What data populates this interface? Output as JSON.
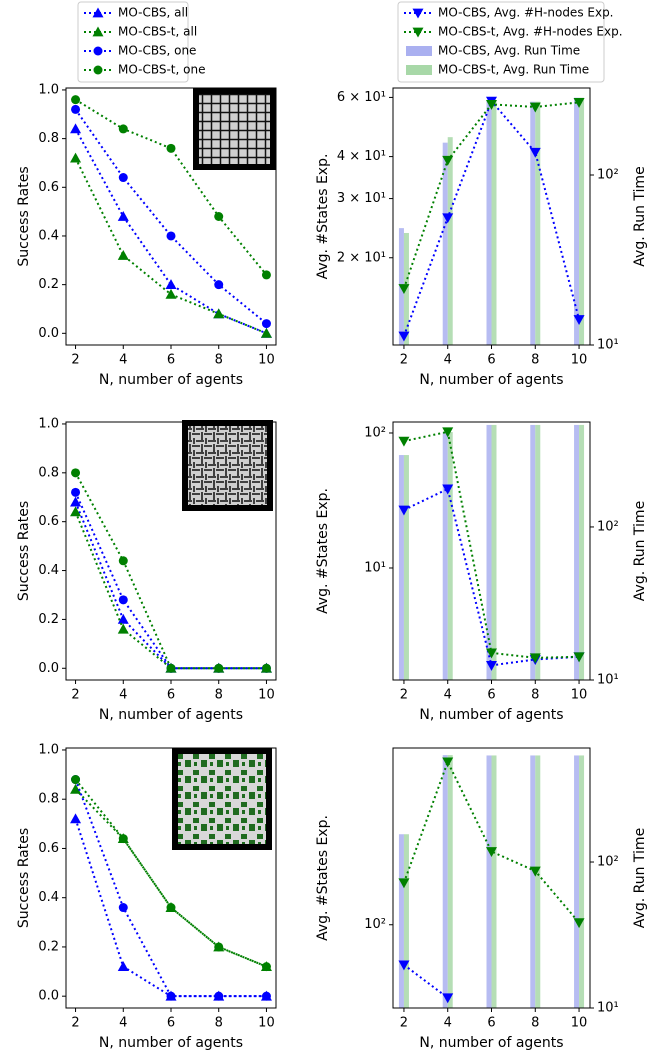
{
  "chart_data": [
    {
      "type": "line",
      "x": [
        2,
        4,
        6,
        8,
        10
      ],
      "xlim": [
        1.6,
        10.4
      ],
      "xticks": [
        2,
        4,
        6,
        8,
        10
      ],
      "ylim": [
        -0.048,
        1.008
      ],
      "yticks": [
        {
          "value": 0,
          "label": "0.0"
        },
        {
          "value": 0.2,
          "label": "0.2"
        },
        {
          "value": 0.4,
          "label": "0.4"
        },
        {
          "value": 0.6,
          "label": "0.6"
        },
        {
          "value": 0.8,
          "label": "0.8"
        },
        {
          "value": 1,
          "label": "1.0"
        }
      ],
      "xlabel": "N, number of agents",
      "ylabel": "Success Rates",
      "series": [
        {
          "name": "MO-CBS, all",
          "color": "#0000ff",
          "marker": "^",
          "values": [
            0.84,
            0.48,
            0.2,
            0.08,
            0.0
          ]
        },
        {
          "name": "MO-CBS-t, all",
          "color": "#008000",
          "marker": "^",
          "values": [
            0.72,
            0.32,
            0.16,
            0.08,
            0.0
          ]
        },
        {
          "name": "MO-CBS, one",
          "color": "#0000ff",
          "marker": "o",
          "values": [
            0.92,
            0.64,
            0.4,
            0.2,
            0.04
          ]
        },
        {
          "name": "MO-CBS-t, one",
          "color": "#008000",
          "marker": "o",
          "values": [
            0.96,
            0.84,
            0.76,
            0.48,
            0.24
          ]
        }
      ]
    },
    {
      "type": "combo",
      "x": [
        2,
        4,
        6,
        8,
        10
      ],
      "xlim": [
        1.5,
        10.5
      ],
      "xticks": [
        2,
        4,
        6,
        8,
        10
      ],
      "yscale": "log",
      "ylim": [
        11,
        64
      ],
      "yticks": [
        {
          "value": 20,
          "label": "2 × 10¹"
        },
        {
          "value": 30,
          "label": "3 × 10¹"
        },
        {
          "value": 40,
          "label": "4 × 10¹"
        },
        {
          "value": 60,
          "label": "6 × 10¹"
        }
      ],
      "y2scale": "log",
      "y2lim": [
        10,
        325
      ],
      "y2ticks": [
        {
          "value": 10,
          "label": "10¹"
        },
        {
          "value": 100,
          "label": "10²"
        }
      ],
      "xlabel": "N, number of agents",
      "ylabel": "Avg. #States Exp.",
      "y2label": "Avg. Run Time",
      "series": [
        {
          "name": "MO-CBS, Avg. #H-nodes Exp.",
          "type": "line",
          "color": "#0000ff",
          "marker": "v",
          "values": [
            11.7,
            26.3,
            58.5,
            41.2,
            13.1
          ]
        },
        {
          "name": "MO-CBS-t, Avg. #H-nodes Exp.",
          "type": "line",
          "color": "#008000",
          "marker": "v",
          "values": [
            16.2,
            39,
            57.2,
            56.2,
            58
          ]
        },
        {
          "name": "MO-CBS, Avg. Run Time",
          "type": "bar",
          "axis": "y2",
          "color": "#aab0f0",
          "values": [
            48.7,
            155,
            275,
            270,
            285
          ]
        },
        {
          "name": "MO-CBS-t, Avg. Run Time",
          "type": "bar",
          "axis": "y2",
          "color": "#a8d8a8",
          "values": [
            45.6,
            167,
            275,
            270,
            285
          ]
        }
      ]
    },
    {
      "type": "line",
      "x": [
        2,
        4,
        6,
        8,
        10
      ],
      "xlim": [
        1.6,
        10.4
      ],
      "xticks": [
        2,
        4,
        6,
        8,
        10
      ],
      "ylim": [
        -0.048,
        1.008
      ],
      "yticks": [
        {
          "value": 0,
          "label": "0.0"
        },
        {
          "value": 0.2,
          "label": "0.2"
        },
        {
          "value": 0.4,
          "label": "0.4"
        },
        {
          "value": 0.6,
          "label": "0.6"
        },
        {
          "value": 0.8,
          "label": "0.8"
        },
        {
          "value": 1,
          "label": "1.0"
        }
      ],
      "xlabel": "N, number of agents",
      "ylabel": "Success Rates",
      "series": [
        {
          "color": "#0000ff",
          "marker": "^",
          "values": [
            0.68,
            0.2,
            0.0,
            0.0,
            0.0
          ]
        },
        {
          "color": "#008000",
          "marker": "^",
          "values": [
            0.64,
            0.16,
            0.0,
            0.0,
            0.0
          ]
        },
        {
          "color": "#0000ff",
          "marker": "o",
          "values": [
            0.72,
            0.28,
            0.0,
            0.0,
            0.0
          ]
        },
        {
          "color": "#008000",
          "marker": "o",
          "values": [
            0.8,
            0.44,
            0.0,
            0.0,
            0.0
          ]
        }
      ]
    },
    {
      "type": "combo",
      "x": [
        2,
        4,
        6,
        8,
        10
      ],
      "xlim": [
        1.5,
        10.5
      ],
      "xticks": [
        2,
        4,
        6,
        8,
        10
      ],
      "yscale": "log",
      "ylim": [
        1.48,
        120.6
      ],
      "yticks": [
        {
          "value": 10,
          "label": "10¹"
        },
        {
          "value": 100,
          "label": "10²"
        }
      ],
      "y2scale": "log",
      "y2lim": [
        10,
        485
      ],
      "y2ticks": [
        {
          "value": 10,
          "label": "10¹"
        },
        {
          "value": 100,
          "label": "10²"
        }
      ],
      "xlabel": "N, number of agents",
      "ylabel": "Avg. #States Exp.",
      "y2label": "Avg. Run Time",
      "series": [
        {
          "type": "line",
          "color": "#0000ff",
          "marker": "v",
          "values": [
            26.9,
            38.5,
            1.9,
            2.1,
            2.2
          ]
        },
        {
          "type": "line",
          "color": "#008000",
          "marker": "v",
          "values": [
            87,
            102,
            2.35,
            2.16,
            2.2
          ]
        },
        {
          "type": "bar",
          "axis": "y2",
          "color": "#aab0f0",
          "values": [
            295,
            417,
            464,
            464,
            464
          ]
        },
        {
          "type": "bar",
          "axis": "y2",
          "color": "#a8d8a8",
          "values": [
            295,
            417,
            464,
            464,
            464
          ]
        }
      ]
    },
    {
      "type": "line",
      "x": [
        2,
        4,
        6,
        8,
        10
      ],
      "xlim": [
        1.6,
        10.4
      ],
      "xticks": [
        2,
        4,
        6,
        8,
        10
      ],
      "ylim": [
        -0.048,
        1.008
      ],
      "yticks": [
        {
          "value": 0,
          "label": "0.0"
        },
        {
          "value": 0.2,
          "label": "0.2"
        },
        {
          "value": 0.4,
          "label": "0.4"
        },
        {
          "value": 0.6,
          "label": "0.6"
        },
        {
          "value": 0.8,
          "label": "0.8"
        },
        {
          "value": 1,
          "label": "1.0"
        }
      ],
      "xlabel": "N, number of agents",
      "ylabel": "Success Rates",
      "series": [
        {
          "color": "#0000ff",
          "marker": "^",
          "values": [
            0.72,
            0.12,
            0.0,
            0.0,
            0.0
          ]
        },
        {
          "color": "#008000",
          "marker": "^",
          "values": [
            0.84,
            0.64,
            0.36,
            0.2,
            0.12
          ]
        },
        {
          "color": "#0000ff",
          "marker": "o",
          "values": [
            0.88,
            0.36,
            0.0,
            0.0,
            0.0
          ]
        },
        {
          "color": "#008000",
          "marker": "o",
          "values": [
            0.88,
            0.64,
            0.36,
            0.2,
            0.12
          ]
        }
      ]
    },
    {
      "type": "combo",
      "x": [
        2,
        4,
        6,
        8,
        10
      ],
      "xlim": [
        1.5,
        10.5
      ],
      "xticks": [
        2,
        4,
        6,
        8,
        10
      ],
      "yscale": "log",
      "ylim": [
        46,
        520
      ],
      "yticks": [
        {
          "value": 100,
          "label": "10²"
        }
      ],
      "y2scale": "log",
      "y2lim": [
        10,
        604
      ],
      "y2ticks": [
        {
          "value": 10,
          "label": "10¹"
        },
        {
          "value": 100,
          "label": "10²"
        }
      ],
      "xlabel": "N, number of agents",
      "ylabel": "Avg. #States Exp.",
      "y2label": "Avg. Run Time",
      "series": [
        {
          "type": "line",
          "color": "#0000ff",
          "marker": "v",
          "values": [
            68.8,
            50.6,
            null,
            null,
            null
          ]
        },
        {
          "type": "line",
          "color": "#008000",
          "marker": "v",
          "values": [
            148,
            457,
            198,
            165,
            102
          ]
        },
        {
          "type": "bar",
          "axis": "y2",
          "color": "#aab0f0",
          "values": [
            155,
            540,
            537,
            537,
            537
          ]
        },
        {
          "type": "bar",
          "axis": "y2",
          "color": "#a8d8a8",
          "values": [
            155,
            540,
            537,
            537,
            537
          ]
        }
      ]
    }
  ]
}
